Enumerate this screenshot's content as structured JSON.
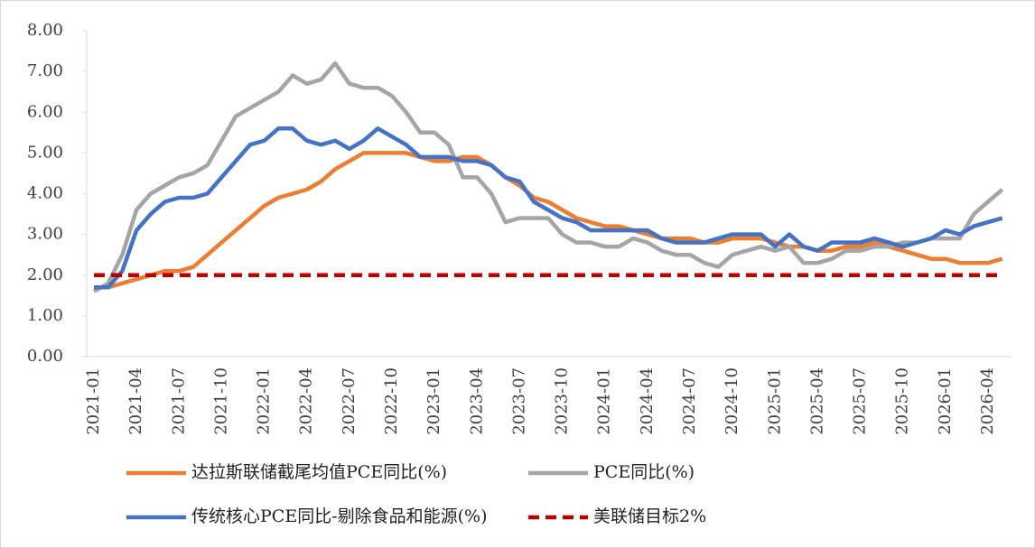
{
  "chart_data": {
    "type": "line",
    "categories": [
      "2021-01",
      null,
      null,
      "2021-04",
      null,
      null,
      "2021-07",
      null,
      null,
      "2021-10",
      null,
      null,
      "2022-01",
      null,
      null,
      "2022-04",
      null,
      null,
      "2022-07",
      null,
      null,
      "2022-10",
      null,
      null,
      "2023-01",
      null,
      null,
      "2023-04",
      null,
      null,
      "2023-07",
      null,
      null,
      "2023-10",
      null,
      null,
      "2024-01",
      null,
      null,
      "2024-04",
      null,
      null,
      "2024-07",
      null,
      null,
      "2024-10",
      null,
      null,
      "2025-01",
      null,
      null,
      "2025-04",
      null,
      null,
      "2025-07",
      null,
      null,
      "2025-10",
      null,
      null,
      "2026-01",
      null,
      null,
      "2026-04",
      null
    ],
    "series": [
      {
        "name": "达拉斯联储截尾均值PCE同比(%)",
        "color": "#ed7d31",
        "dashed": false,
        "values": [
          1.7,
          1.7,
          1.8,
          1.9,
          2.0,
          2.1,
          2.1,
          2.2,
          2.5,
          2.8,
          3.1,
          3.4,
          3.7,
          3.9,
          4.0,
          4.1,
          4.3,
          4.6,
          4.8,
          5.0,
          5.0,
          5.0,
          5.0,
          4.9,
          4.8,
          4.8,
          4.9,
          4.9,
          4.7,
          4.4,
          4.2,
          3.9,
          3.8,
          3.6,
          3.4,
          3.3,
          3.2,
          3.2,
          3.1,
          3.0,
          2.9,
          2.9,
          2.9,
          2.8,
          2.8,
          2.9,
          2.9,
          2.9,
          2.8,
          2.7,
          2.7,
          2.6,
          2.6,
          2.7,
          2.7,
          2.8,
          2.7,
          2.6,
          2.5,
          2.4,
          2.4,
          2.3,
          2.3,
          2.3,
          2.4
        ]
      },
      {
        "name": "PCE同比(%)",
        "color": "#a5a5a5",
        "dashed": false,
        "values": [
          1.6,
          1.8,
          2.5,
          3.6,
          4.0,
          4.2,
          4.4,
          4.5,
          4.7,
          5.3,
          5.9,
          6.1,
          6.3,
          6.5,
          6.9,
          6.7,
          6.8,
          7.2,
          6.7,
          6.6,
          6.6,
          6.4,
          6.0,
          5.5,
          5.5,
          5.2,
          4.4,
          4.4,
          4.0,
          3.3,
          3.4,
          3.4,
          3.4,
          3.0,
          2.8,
          2.8,
          2.7,
          2.7,
          2.9,
          2.8,
          2.6,
          2.5,
          2.5,
          2.3,
          2.2,
          2.5,
          2.6,
          2.7,
          2.6,
          2.7,
          2.3,
          2.3,
          2.4,
          2.6,
          2.6,
          2.7,
          2.7,
          2.8,
          2.8,
          2.9,
          2.9,
          2.9,
          3.5,
          3.8,
          4.1
        ]
      },
      {
        "name": "传统核心PCE同比-剔除食品和能源(%)",
        "color": "#4472c4",
        "dashed": false,
        "values": [
          1.7,
          1.7,
          2.1,
          3.1,
          3.5,
          3.8,
          3.9,
          3.9,
          4.0,
          4.4,
          4.8,
          5.2,
          5.3,
          5.6,
          5.6,
          5.3,
          5.2,
          5.3,
          5.1,
          5.3,
          5.6,
          5.4,
          5.2,
          4.9,
          4.9,
          4.9,
          4.8,
          4.8,
          4.7,
          4.4,
          4.3,
          3.8,
          3.6,
          3.4,
          3.3,
          3.1,
          3.1,
          3.1,
          3.1,
          3.1,
          2.9,
          2.8,
          2.8,
          2.8,
          2.9,
          3.0,
          3.0,
          3.0,
          2.7,
          3.0,
          2.7,
          2.6,
          2.8,
          2.8,
          2.8,
          2.9,
          2.8,
          2.7,
          2.8,
          2.9,
          3.1,
          3.0,
          3.2,
          3.3,
          3.4
        ]
      },
      {
        "name": "美联储目标2%",
        "color": "#c00000",
        "dashed": true,
        "values": [
          2,
          2,
          2,
          2,
          2,
          2,
          2,
          2,
          2,
          2,
          2,
          2,
          2,
          2,
          2,
          2,
          2,
          2,
          2,
          2,
          2,
          2,
          2,
          2,
          2,
          2,
          2,
          2,
          2,
          2,
          2,
          2,
          2,
          2,
          2,
          2,
          2,
          2,
          2,
          2,
          2,
          2,
          2,
          2,
          2,
          2,
          2,
          2,
          2,
          2,
          2,
          2,
          2,
          2,
          2,
          2,
          2,
          2,
          2,
          2,
          2,
          2,
          2,
          2,
          2
        ]
      }
    ],
    "ylim": [
      0,
      8
    ],
    "yticks": [
      {
        "value": 0,
        "label": "0.00"
      },
      {
        "value": 1,
        "label": "1.00"
      },
      {
        "value": 2,
        "label": "2.00"
      },
      {
        "value": 3,
        "label": "3.00"
      },
      {
        "value": 4,
        "label": "4.00"
      },
      {
        "value": 5,
        "label": "5.00"
      },
      {
        "value": 6,
        "label": "6.00"
      },
      {
        "value": 7,
        "label": "7.00"
      },
      {
        "value": 8,
        "label": "8.00"
      }
    ],
    "grid": false
  }
}
